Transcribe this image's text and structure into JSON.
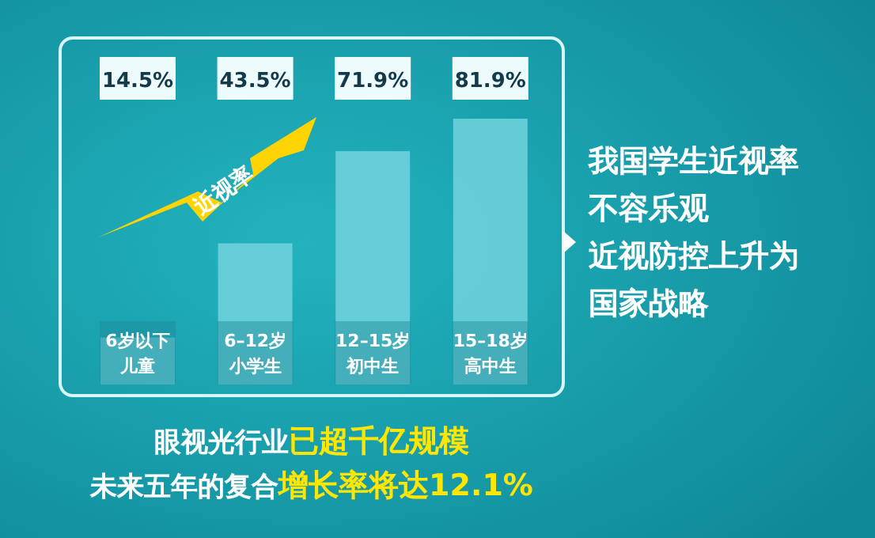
{
  "chart_data": {
    "type": "bar",
    "relative": false,
    "categories": [
      "6岁以下儿童",
      "6–12岁小学生",
      "12–15岁初中生",
      "15–18岁高中生"
    ],
    "values": [
      14.5,
      43.5,
      71.9,
      81.9
    ],
    "value_labels": [
      "14.5%",
      "43.5%",
      "71.9%",
      "81.9%"
    ],
    "color": "#6dd0da",
    "annotations": [
      "近视率",
      "我国学生近视率不容乐观",
      "近视防控上升为国家战略",
      "眼视光行业**已超千亿规模**",
      "未来五年的复合**增长率将达12.1%**"
    ]
  }
}
